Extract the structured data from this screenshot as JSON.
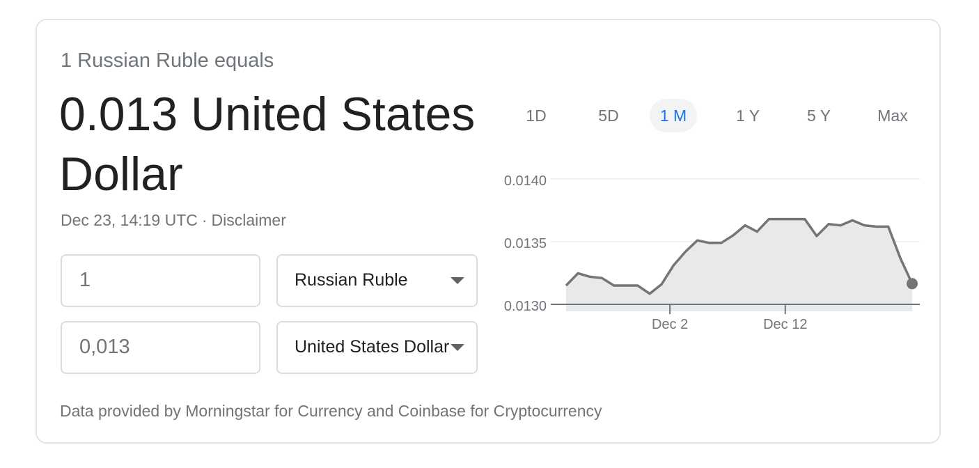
{
  "converter": {
    "lead_text": "1 Russian Ruble equals",
    "result_text": "0.013 United States Dollar",
    "timestamp": "Dec 23, 14:19 UTC",
    "separator": "·",
    "disclaimer": "Disclaimer",
    "from_amount": "1",
    "from_currency": "Russian Ruble",
    "to_amount": "0,013",
    "to_currency": "United States Dollar",
    "footer": "Data provided by Morningstar for Currency and Coinbase for Cryptocurrency"
  },
  "range_tabs": {
    "items": [
      "1D",
      "5D",
      "1 M",
      "1 Y",
      "5 Y",
      "Max"
    ],
    "selected": "1 M"
  },
  "colors": {
    "accent": "#1a73e8",
    "line": "#757575",
    "area": "#e8e9eb",
    "grid": "#ebebeb"
  },
  "chart_data": {
    "type": "area",
    "y_ticks": [
      "0.0140",
      "0.0135",
      "0.0130"
    ],
    "y_tick_values": [
      0.014,
      0.0135,
      0.013
    ],
    "ylim": [
      0.013,
      0.014
    ],
    "x_ticks": [
      {
        "label": "Dec 2",
        "x": 9
      },
      {
        "label": "Dec 12",
        "x": 19
      }
    ],
    "xlim": [
      0,
      30
    ],
    "grid": true,
    "values": [
      0.01315,
      0.013248,
      0.01322,
      0.01321,
      0.01315,
      0.01315,
      0.01315,
      0.013085,
      0.01316,
      0.01331,
      0.01342,
      0.01351,
      0.01349,
      0.01349,
      0.01355,
      0.01363,
      0.01358,
      0.01368,
      0.01368,
      0.01368,
      0.01368,
      0.013545,
      0.01364,
      0.01363,
      0.01367,
      0.01363,
      0.01362,
      0.01362,
      0.01337,
      0.013165
    ]
  }
}
